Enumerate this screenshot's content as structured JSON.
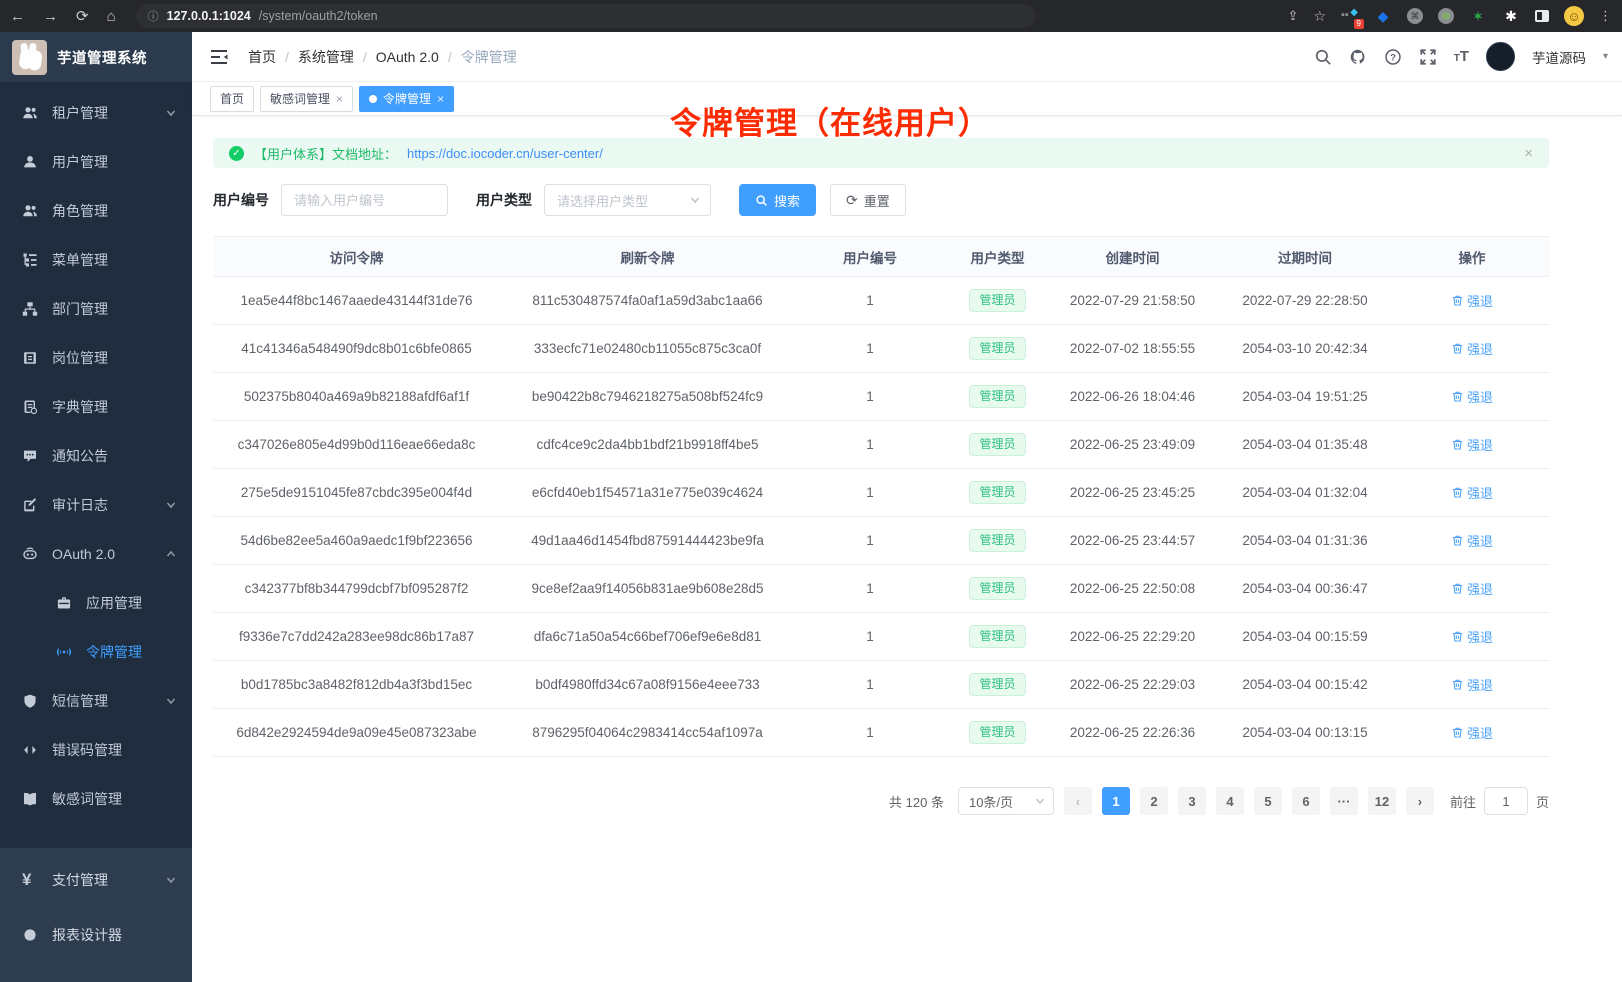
{
  "browser": {
    "url_host": "127.0.0.1:1024",
    "url_path": "/system/oauth2/token",
    "extension_badge": "9"
  },
  "app_title": "芋道管理系统",
  "breadcrumb": [
    "首页",
    "系统管理",
    "OAuth 2.0",
    "令牌管理"
  ],
  "annotation": "令牌管理（在线用户）",
  "header_right": {
    "username": "芋道源码"
  },
  "tabs": [
    {
      "label": "首页",
      "active": false,
      "closable": false
    },
    {
      "label": "敏感词管理",
      "active": false,
      "closable": true
    },
    {
      "label": "令牌管理",
      "active": true,
      "closable": true
    }
  ],
  "sidebar": {
    "items": [
      {
        "icon": "users",
        "label": "租户管理",
        "chevron": "down"
      },
      {
        "icon": "user",
        "label": "用户管理"
      },
      {
        "icon": "role",
        "label": "角色管理"
      },
      {
        "icon": "menu",
        "label": "菜单管理"
      },
      {
        "icon": "dept",
        "label": "部门管理"
      },
      {
        "icon": "post",
        "label": "岗位管理"
      },
      {
        "icon": "dict",
        "label": "字典管理"
      },
      {
        "icon": "notice",
        "label": "通知公告"
      },
      {
        "icon": "audit",
        "label": "审计日志",
        "chevron": "down"
      },
      {
        "icon": "oauth",
        "label": "OAuth 2.0",
        "chevron": "up"
      },
      {
        "icon": "app",
        "label": "应用管理",
        "child": true
      },
      {
        "icon": "token",
        "label": "令牌管理",
        "child": true,
        "active": true
      },
      {
        "icon": "sms",
        "label": "短信管理",
        "chevron": "down"
      },
      {
        "icon": "errcode",
        "label": "错误码管理"
      },
      {
        "icon": "sensitive",
        "label": "敏感词管理"
      }
    ],
    "bottom_items": [
      {
        "icon": "pay",
        "label": "支付管理",
        "chevron": "down"
      },
      {
        "icon": "report",
        "label": "报表设计器"
      }
    ]
  },
  "alert": {
    "text": "【用户体系】文档地址：",
    "link": "https://doc.iocoder.cn/user-center/",
    "close": "×"
  },
  "filters": {
    "user_id_label": "用户编号",
    "user_id_placeholder": "请输入用户编号",
    "user_type_label": "用户类型",
    "user_type_placeholder": "请选择用户类型",
    "search_label": "搜索",
    "reset_label": "重置"
  },
  "table": {
    "headers": [
      "访问令牌",
      "刷新令牌",
      "用户编号",
      "用户类型",
      "创建时间",
      "过期时间",
      "操作"
    ],
    "action_label": "强退",
    "rows": [
      {
        "access": "1ea5e44f8bc1467aaede43144f31de76",
        "refresh": "811c530487574fa0af1a59d3abc1aa66",
        "user_id": "1",
        "user_type": "管理员",
        "created": "2022-07-29 21:58:50",
        "expires": "2022-07-29 22:28:50"
      },
      {
        "access": "41c41346a548490f9dc8b01c6bfe0865",
        "refresh": "333ecfc71e02480cb11055c875c3ca0f",
        "user_id": "1",
        "user_type": "管理员",
        "created": "2022-07-02 18:55:55",
        "expires": "2054-03-10 20:42:34"
      },
      {
        "access": "502375b8040a469a9b82188afdf6af1f",
        "refresh": "be90422b8c7946218275a508bf524fc9",
        "user_id": "1",
        "user_type": "管理员",
        "created": "2022-06-26 18:04:46",
        "expires": "2054-03-04 19:51:25"
      },
      {
        "access": "c347026e805e4d99b0d116eae66eda8c",
        "refresh": "cdfc4ce9c2da4bb1bdf21b9918ff4be5",
        "user_id": "1",
        "user_type": "管理员",
        "created": "2022-06-25 23:49:09",
        "expires": "2054-03-04 01:35:48"
      },
      {
        "access": "275e5de9151045fe87cbdc395e004f4d",
        "refresh": "e6cfd40eb1f54571a31e775e039c4624",
        "user_id": "1",
        "user_type": "管理员",
        "created": "2022-06-25 23:45:25",
        "expires": "2054-03-04 01:32:04"
      },
      {
        "access": "54d6be82ee5a460a9aedc1f9bf223656",
        "refresh": "49d1aa46d1454fbd87591444423be9fa",
        "user_id": "1",
        "user_type": "管理员",
        "created": "2022-06-25 23:44:57",
        "expires": "2054-03-04 01:31:36"
      },
      {
        "access": "c342377bf8b344799dcbf7bf095287f2",
        "refresh": "9ce8ef2aa9f14056b831ae9b608e28d5",
        "user_id": "1",
        "user_type": "管理员",
        "created": "2022-06-25 22:50:08",
        "expires": "2054-03-04 00:36:47"
      },
      {
        "access": "f9336e7c7dd242a283ee98dc86b17a87",
        "refresh": "dfa6c71a50a54c66bef706ef9e6e8d81",
        "user_id": "1",
        "user_type": "管理员",
        "created": "2022-06-25 22:29:20",
        "expires": "2054-03-04 00:15:59"
      },
      {
        "access": "b0d1785bc3a8482f812db4a3f3bd15ec",
        "refresh": "b0df4980ffd34c67a08f9156e4eee733",
        "user_id": "1",
        "user_type": "管理员",
        "created": "2022-06-25 22:29:03",
        "expires": "2054-03-04 00:15:42"
      },
      {
        "access": "6d842e2924594de9a09e45e087323abe",
        "refresh": "8796295f04064c2983414cc54af1097a",
        "user_id": "1",
        "user_type": "管理员",
        "created": "2022-06-25 22:26:36",
        "expires": "2054-03-04 00:13:15"
      }
    ]
  },
  "pagination": {
    "total": "共 120 条",
    "page_size": "10条/页",
    "pages": [
      "1",
      "2",
      "3",
      "4",
      "5",
      "6",
      "···",
      "12"
    ],
    "active_page": "1",
    "prev": "‹",
    "next": "›",
    "goto_label": "前往",
    "goto_value": "1",
    "goto_suffix": "页"
  },
  "colors": {
    "primary": "#409eff",
    "success": "#13ce66",
    "sidebar_bg": "#1f2d3f",
    "annotation_red": "#fd2b01"
  }
}
